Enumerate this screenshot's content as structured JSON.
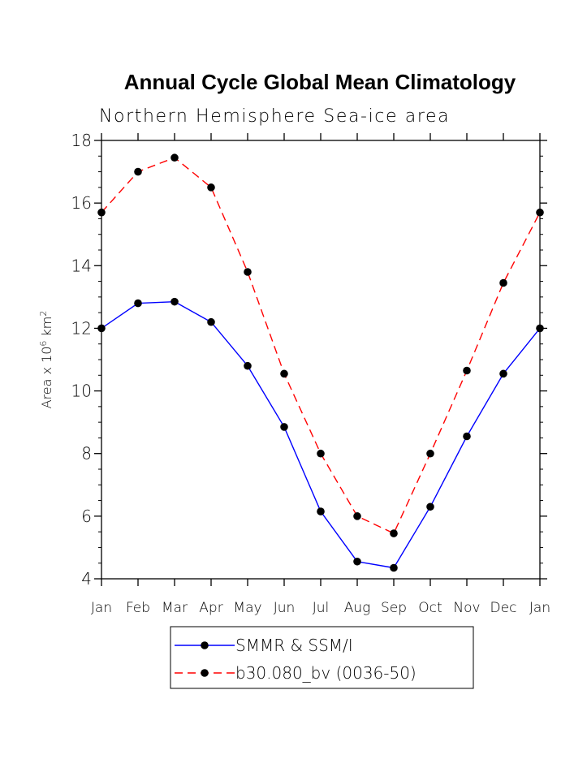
{
  "chart_data": {
    "type": "line",
    "title": "Annual Cycle Global Mean Climatology",
    "subtitle": "Northern Hemisphere Sea-ice area",
    "ylabel": {
      "base": "Area x 10",
      "base_exponent": "6",
      "unit": " km",
      "unit_exponent": "2"
    },
    "xlabel": "",
    "categories": [
      "Jan",
      "Feb",
      "Mar",
      "Apr",
      "May",
      "Jun",
      "Jul",
      "Aug",
      "Sep",
      "Oct",
      "Nov",
      "Dec",
      "Jan"
    ],
    "ylim": [
      4,
      18
    ],
    "yticks": [
      4,
      6,
      8,
      10,
      12,
      14,
      16,
      18
    ],
    "ytick_labels": [
      "4",
      "6",
      "8",
      "10",
      "12",
      "14",
      "16",
      "18"
    ],
    "grid": false,
    "legend_position": "bottom-center",
    "series": [
      {
        "name": "SMMR & SSM/I",
        "color": "#0000ff",
        "line_style": "solid",
        "marker": "filled-circle",
        "marker_color": "#000000",
        "values": [
          12.0,
          12.8,
          12.85,
          12.2,
          10.8,
          8.85,
          6.15,
          4.55,
          4.35,
          6.3,
          8.55,
          10.55,
          12.0
        ]
      },
      {
        "name": "b30.080_bv (0036-50)",
        "color": "#ff0000",
        "line_style": "dashed",
        "marker": "filled-circle",
        "marker_color": "#000000",
        "values": [
          15.7,
          17.0,
          17.45,
          16.5,
          13.8,
          10.55,
          8.0,
          6.0,
          5.45,
          8.0,
          10.65,
          13.45,
          15.7
        ]
      }
    ]
  }
}
